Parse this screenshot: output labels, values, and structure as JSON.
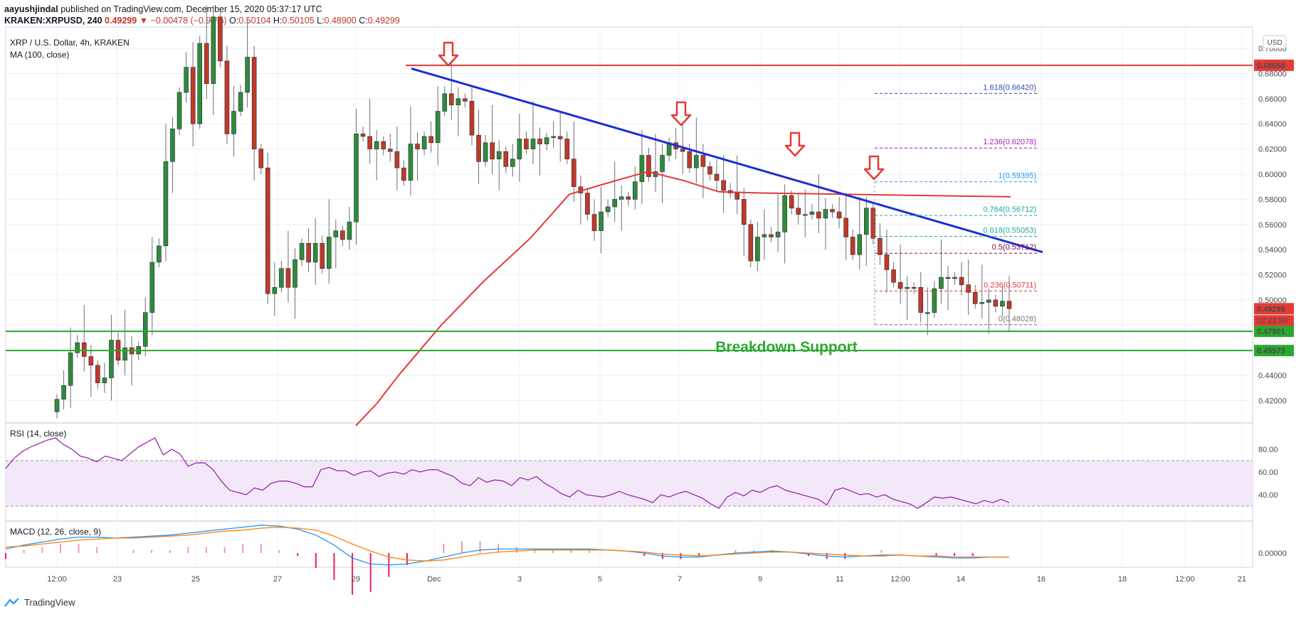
{
  "header": {
    "published_by": "aayushjindal",
    "published_text": "published on TradingView.com, December 15, 2020 05:37:17 UTC",
    "symbol": "KRAKEN:XRPUSD, 240",
    "last": "0.49299",
    "change": "▼ −0.00478 (−0.96%)",
    "open_label": "O:",
    "open": "0.50104",
    "high_label": "H:",
    "high": "0.50105",
    "low_label": "L:",
    "low": "0.48900",
    "close_label": "C:",
    "close": "0.49299"
  },
  "legend": {
    "title": "XRP / U.S. Dollar, 4h, KRAKEN",
    "ma": "MA (100, close)",
    "rsi": "RSI (14, close)",
    "macd": "MACD (12, 26, close, 9)"
  },
  "currency_badge": "USD",
  "annotation": "Breakdown Support",
  "footer": {
    "brand": "TradingView"
  },
  "colors": {
    "up": "#2e8b3d",
    "down": "#c0392b",
    "ma": "#e53935",
    "trend": "#1a2fd6",
    "resistance": "#e53935",
    "support": "#2aa830",
    "rsi": "#9c27b0",
    "macd": "#2196f3",
    "signal": "#ff7f0e",
    "arrow": "#e53935"
  },
  "chart_data": [
    {
      "type": "candlestick",
      "title": "XRP / U.S. Dollar, 4h, KRAKEN",
      "ylim": [
        0.405,
        0.717
      ],
      "y_ticks": [
        "0.70000",
        "0.68000",
        "0.66000",
        "0.64000",
        "0.62000",
        "0.60000",
        "0.58000",
        "0.56000",
        "0.54000",
        "0.52000",
        "0.50000",
        "0.48000",
        "0.46000",
        "0.44000",
        "0.42000"
      ],
      "x_ticks": [
        "12:00",
        "23",
        "25",
        "27",
        "29",
        "Dec",
        "3",
        "5",
        "7",
        "9",
        "11",
        "12:00",
        "14",
        "16",
        "18",
        "12:00",
        "21"
      ],
      "closes": [
        0.421,
        0.432,
        0.458,
        0.466,
        0.455,
        0.448,
        0.434,
        0.438,
        0.468,
        0.452,
        0.462,
        0.457,
        0.463,
        0.49,
        0.53,
        0.543,
        0.61,
        0.636,
        0.665,
        0.685,
        0.64,
        0.704,
        0.672,
        0.725,
        0.69,
        0.632,
        0.65,
        0.665,
        0.693,
        0.62,
        0.605,
        0.505,
        0.51,
        0.525,
        0.51,
        0.532,
        0.545,
        0.53,
        0.545,
        0.525,
        0.55,
        0.555,
        0.548,
        0.562,
        0.632,
        0.63,
        0.62,
        0.626,
        0.62,
        0.618,
        0.605,
        0.595,
        0.624,
        0.62,
        0.63,
        0.625,
        0.65,
        0.664,
        0.655,
        0.66,
        0.658,
        0.631,
        0.61,
        0.625,
        0.612,
        0.618,
        0.606,
        0.612,
        0.628,
        0.62,
        0.628,
        0.624,
        0.629,
        0.63,
        0.628,
        0.612,
        0.59,
        0.585,
        0.568,
        0.555,
        0.57,
        0.574,
        0.58,
        0.582,
        0.58,
        0.594,
        0.615,
        0.598,
        0.602,
        0.615,
        0.625,
        0.62,
        0.618,
        0.605,
        0.615,
        0.606,
        0.6,
        0.595,
        0.587,
        0.585,
        0.58,
        0.56,
        0.531,
        0.55,
        0.552,
        0.55,
        0.554,
        0.583,
        0.573,
        0.568,
        0.568,
        0.57,
        0.565,
        0.572,
        0.57,
        0.565,
        0.55,
        0.536,
        0.552,
        0.573,
        0.549,
        0.536,
        0.524,
        0.514,
        0.509,
        0.51,
        0.51,
        0.49,
        0.49,
        0.509,
        0.518,
        0.517,
        0.518,
        0.512,
        0.506,
        0.497,
        0.498,
        0.5,
        0.495,
        0.499,
        0.493
      ],
      "ma100": {
        "name": "MA (100, close)",
        "x": [
          88,
          95,
          104,
          117,
          130,
          145,
          160,
          178,
          195,
          210,
          222,
          236,
          247
        ],
        "y": [
          0.4,
          0.418,
          0.44,
          0.48,
          0.515,
          0.549,
          0.584,
          0.594,
          0.602,
          0.595,
          0.586,
          0.585,
          0.582
        ]
      },
      "trendline": {
        "from": [
          0.485,
          0.684
        ],
        "to": [
          2.935,
          0.538
        ]
      },
      "resistance": {
        "value": 0.68658,
        "label": "0.68658"
      },
      "support": [
        {
          "value": 0.47501,
          "label": "0.47501"
        },
        {
          "value": 0.45973,
          "label": "0.45973"
        }
      ],
      "current": {
        "label": "0.49299",
        "countdown": "02:22:50"
      },
      "fib_levels": [
        {
          "ratio": "1.618",
          "value": "0.66420"
        },
        {
          "ratio": "1.236",
          "value": "0.62078"
        },
        {
          "ratio": "1",
          "value": "0.59395"
        },
        {
          "ratio": "0.764",
          "value": "0.56712"
        },
        {
          "ratio": "0.618",
          "value": "0.55053"
        },
        {
          "ratio": "0.5",
          "value": "0.53712"
        },
        {
          "ratio": "0.236",
          "value": "0.50711"
        },
        {
          "ratio": "0",
          "value": "0.48028"
        }
      ]
    },
    {
      "type": "line",
      "title": "RSI (14, close)",
      "ylim": [
        20,
        100
      ],
      "y_ticks": [
        "80.00",
        "60.00",
        "40.00"
      ],
      "band": [
        30,
        70
      ],
      "values": [
        63,
        72,
        78,
        82,
        85,
        88,
        90,
        84,
        80,
        74,
        72,
        69,
        74,
        72,
        70,
        76,
        82,
        86,
        90,
        75,
        80,
        76,
        65,
        68,
        68,
        62,
        52,
        44,
        42,
        40,
        46,
        44,
        50,
        52,
        52,
        50,
        47,
        47,
        62,
        64,
        61,
        61,
        57,
        60,
        61,
        56,
        59,
        60,
        58,
        62,
        60,
        62,
        62,
        59,
        56,
        50,
        48,
        55,
        51,
        53,
        52,
        48,
        55,
        53,
        56,
        50,
        46,
        41,
        38,
        44,
        40,
        39,
        38,
        40,
        43,
        40,
        38,
        36,
        33,
        40,
        38,
        41,
        43,
        40,
        37,
        32,
        28,
        38,
        42,
        39,
        44,
        42,
        46,
        48,
        44,
        42,
        40,
        38,
        36,
        31,
        44,
        46,
        43,
        40,
        41,
        38,
        40,
        36,
        34,
        32,
        28,
        33,
        38,
        37,
        38,
        36,
        34,
        32,
        35,
        33,
        36,
        33
      ]
    },
    {
      "type": "line",
      "title": "MACD (12, 26, close, 9)",
      "y_ticks": [
        "0.00000"
      ],
      "series": [
        {
          "name": "MACD",
          "values": [
            0.004,
            0.008,
            0.011,
            0.014,
            0.016,
            0.016,
            0.015,
            0.016,
            0.017,
            0.018,
            0.02,
            0.022,
            0.024,
            0.026,
            0.028,
            0.027,
            0.024,
            0.018,
            0.008,
            -0.005,
            -0.011,
            -0.012,
            -0.011,
            -0.008,
            -0.004,
            0.0,
            0.003,
            0.004,
            0.004,
            0.004,
            0.004,
            0.004,
            0.004,
            0.003,
            0.002,
            0.0,
            -0.003,
            -0.004,
            -0.004,
            -0.002,
            0.0,
            0.001,
            0.002,
            0.001,
            -0.001,
            -0.003,
            -0.004,
            -0.003,
            -0.002,
            -0.002,
            -0.003,
            -0.004,
            -0.005,
            -0.005,
            -0.004,
            -0.004
          ]
        },
        {
          "name": "Signal",
          "values": [
            0.006,
            0.007,
            0.009,
            0.011,
            0.013,
            0.014,
            0.015,
            0.015,
            0.016,
            0.017,
            0.018,
            0.02,
            0.022,
            0.023,
            0.025,
            0.026,
            0.025,
            0.023,
            0.017,
            0.009,
            0.002,
            -0.004,
            -0.007,
            -0.008,
            -0.007,
            -0.004,
            -0.001,
            0.001,
            0.002,
            0.003,
            0.003,
            0.003,
            0.003,
            0.003,
            0.002,
            0.001,
            -0.001,
            -0.002,
            -0.003,
            -0.002,
            -0.001,
            0.0,
            0.001,
            0.001,
            0.0,
            -0.001,
            -0.002,
            -0.003,
            -0.003,
            -0.002,
            -0.003,
            -0.003,
            -0.004,
            -0.004,
            -0.004,
            -0.004
          ]
        }
      ]
    }
  ]
}
